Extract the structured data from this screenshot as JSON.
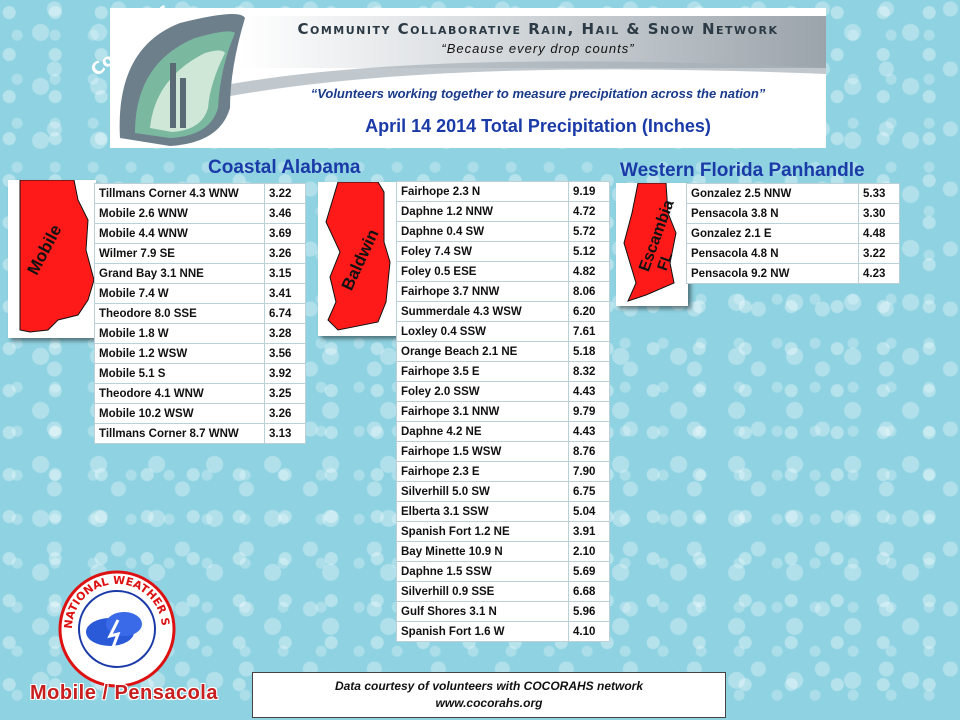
{
  "banner": {
    "logo_text": "CoCoRaHS",
    "network_title": "Community Collaborative Rain, Hail & Snow Network",
    "tagline": "“Because every drop counts”",
    "volunteers": "“Volunteers working together to measure precipitation across the nation”",
    "precip_title": "April 14  2014 Total Precipitation (Inches)"
  },
  "regions": {
    "coastal_alabama": "Coastal Alabama",
    "western_florida": "Western Florida Panhandle"
  },
  "maps": {
    "mobile": "Mobile",
    "baldwin": "Baldwin",
    "escambia": "Escambia",
    "fl": "FL"
  },
  "mobile_table": [
    {
      "station": "Tillmans Corner 4.3 WNW",
      "value": "3.22"
    },
    {
      "station": "Mobile 2.6 WNW",
      "value": "3.46"
    },
    {
      "station": "Mobile 4.4 WNW",
      "value": "3.69"
    },
    {
      "station": "Wilmer 7.9 SE",
      "value": "3.26"
    },
    {
      "station": "Grand Bay 3.1 NNE",
      "value": "3.15"
    },
    {
      "station": "Mobile 7.4 W",
      "value": "3.41"
    },
    {
      "station": "Theodore 8.0 SSE",
      "value": "6.74"
    },
    {
      "station": "Mobile 1.8 W",
      "value": "3.28"
    },
    {
      "station": "Mobile 1.2 WSW",
      "value": "3.56"
    },
    {
      "station": "Mobile 5.1 S",
      "value": "3.92"
    },
    {
      "station": "Theodore 4.1 WNW",
      "value": "3.25"
    },
    {
      "station": "Mobile 10.2 WSW",
      "value": "3.26"
    },
    {
      "station": "Tillmans Corner 8.7 WNW",
      "value": "3.13"
    }
  ],
  "baldwin_table": [
    {
      "station": "Fairhope 2.3 N",
      "value": "9.19"
    },
    {
      "station": "Daphne 1.2 NNW",
      "value": "4.72"
    },
    {
      "station": "Daphne 0.4 SW",
      "value": "5.72"
    },
    {
      "station": "Foley 7.4 SW",
      "value": "5.12"
    },
    {
      "station": "Foley 0.5 ESE",
      "value": "4.82"
    },
    {
      "station": "Fairhope 3.7 NNW",
      "value": "8.06"
    },
    {
      "station": "Summerdale 4.3 WSW",
      "value": "6.20"
    },
    {
      "station": "Loxley 0.4 SSW",
      "value": "7.61"
    },
    {
      "station": "Orange Beach 2.1 NE",
      "value": "5.18"
    },
    {
      "station": "Fairhope 3.5 E",
      "value": "8.32"
    },
    {
      "station": "Foley 2.0 SSW",
      "value": "4.43"
    },
    {
      "station": "Fairhope 3.1 NNW",
      "value": "9.79"
    },
    {
      "station": "Daphne 4.2 NE",
      "value": "4.43"
    },
    {
      "station": "Fairhope 1.5 WSW",
      "value": "8.76"
    },
    {
      "station": "Fairhope 2.3 E",
      "value": "7.90"
    },
    {
      "station": "Silverhill 5.0 SW",
      "value": "6.75"
    },
    {
      "station": "Elberta 3.1 SSW",
      "value": "5.04"
    },
    {
      "station": "Spanish Fort 1.2 NE",
      "value": "3.91"
    },
    {
      "station": "Bay Minette 10.9 N",
      "value": "2.10"
    },
    {
      "station": "Daphne 1.5 SSW",
      "value": "5.69"
    },
    {
      "station": "Silverhill 0.9 SSE",
      "value": "6.68"
    },
    {
      "station": "Gulf Shores 3.1 N",
      "value": "5.96"
    },
    {
      "station": "Spanish Fort 1.6 W",
      "value": "4.10"
    }
  ],
  "escambia_table": [
    {
      "station": "Gonzalez 2.5 NNW",
      "value": "5.33"
    },
    {
      "station": "Pensacola 3.8 N",
      "value": "3.30"
    },
    {
      "station": "Gonzalez 2.1 E",
      "value": "4.48"
    },
    {
      "station": "Pensacola 4.8 N",
      "value": "3.22"
    },
    {
      "station": "Pensacola 9.2 NW",
      "value": "4.23"
    }
  ],
  "nws": {
    "logo_text": "NATIONAL WEATHER SERVICE",
    "office": "Mobile / Pensacola"
  },
  "courtesy": {
    "line1": "Data courtesy of volunteers with COCORAHS network",
    "line2": "www.cocorahs.org"
  },
  "colors": {
    "background": "#8fd3e2",
    "county_fill": "#ff1a1a",
    "title_blue": "#1a3aa8",
    "office_red": "#c81e1e"
  }
}
